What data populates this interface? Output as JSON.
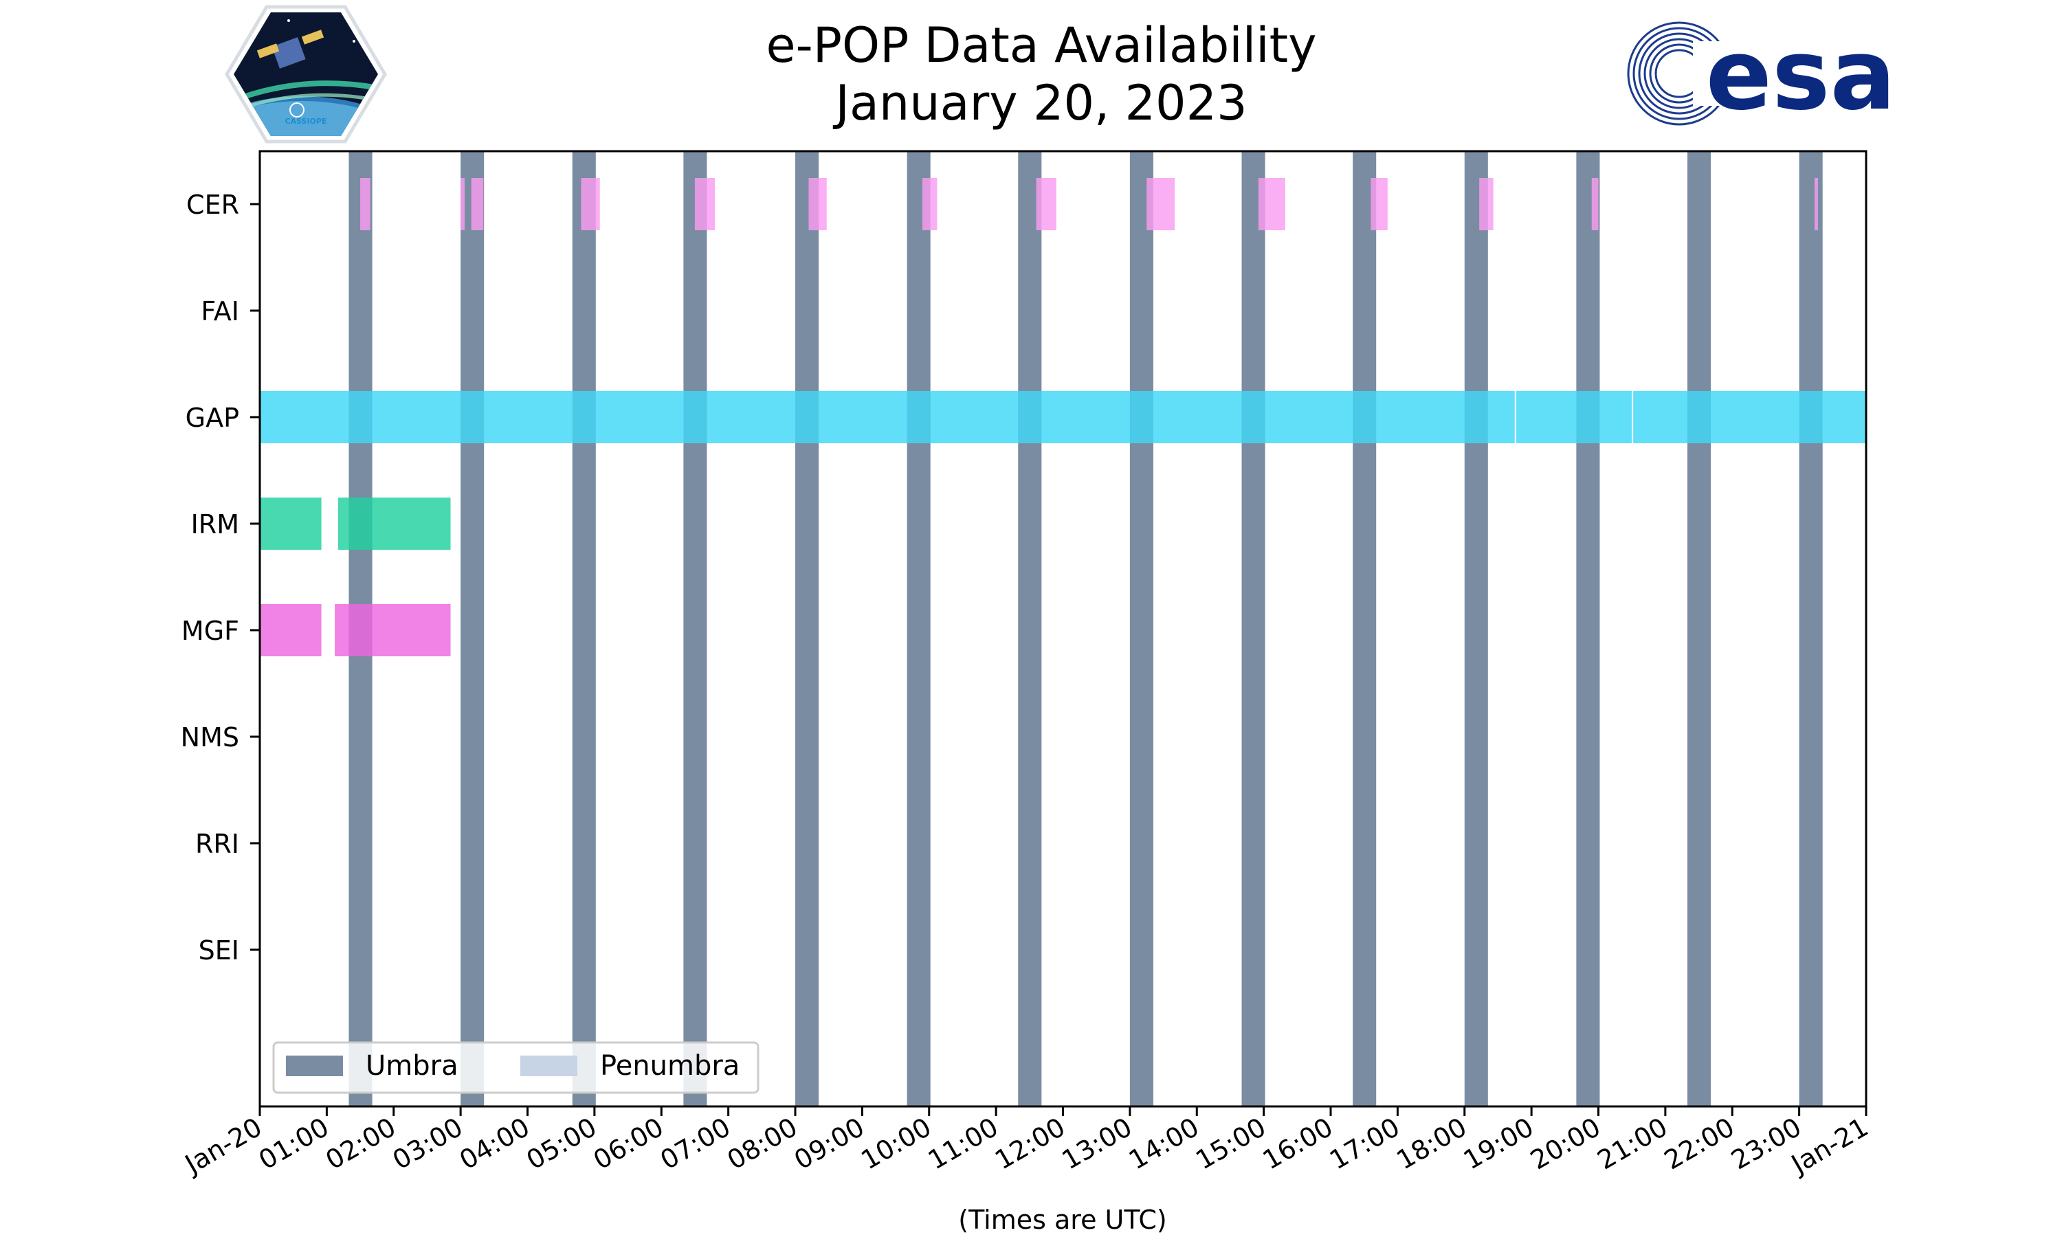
{
  "chart_data": {
    "type": "timeline",
    "title_line1": "e-POP Data Availability",
    "title_line2": "January 20, 2023",
    "xlabel": "(Times are UTC)",
    "x_range_hours": [
      0,
      24
    ],
    "x_tick_labels": [
      "Jan-20",
      "01:00",
      "02:00",
      "03:00",
      "04:00",
      "05:00",
      "06:00",
      "07:00",
      "08:00",
      "09:00",
      "10:00",
      "11:00",
      "12:00",
      "13:00",
      "14:00",
      "15:00",
      "16:00",
      "17:00",
      "18:00",
      "19:00",
      "20:00",
      "21:00",
      "22:00",
      "23:00",
      "Jan-21"
    ],
    "instruments": [
      "CER",
      "FAI",
      "GAP",
      "IRM",
      "MGF",
      "NMS",
      "RRI",
      "SEI"
    ],
    "colors": {
      "umbra": "#7a8ca1",
      "penumbra": "#c6d4e6",
      "CER": "#f99cf0",
      "GAP": "#40d8f7",
      "IRM": "#20d1a0",
      "MGF": "#ee66e0"
    },
    "umbra_intervals_hours": [
      [
        1.33,
        1.68
      ],
      [
        3.0,
        3.35
      ],
      [
        4.67,
        5.02
      ],
      [
        6.33,
        6.68
      ],
      [
        8.0,
        8.35
      ],
      [
        9.67,
        10.02
      ],
      [
        11.33,
        11.68
      ],
      [
        13.0,
        13.35
      ],
      [
        14.67,
        15.02
      ],
      [
        16.33,
        16.68
      ],
      [
        18.0,
        18.35
      ],
      [
        19.67,
        20.02
      ],
      [
        21.33,
        21.68
      ],
      [
        23.0,
        23.35
      ]
    ],
    "availability_hours": {
      "CER": [
        [
          1.5,
          1.65
        ],
        [
          3.0,
          3.06
        ],
        [
          3.16,
          3.34
        ],
        [
          4.8,
          5.08
        ],
        [
          6.5,
          6.8
        ],
        [
          8.2,
          8.47
        ],
        [
          9.9,
          10.12
        ],
        [
          11.6,
          11.9
        ],
        [
          13.25,
          13.67
        ],
        [
          14.92,
          15.32
        ],
        [
          16.6,
          16.85
        ],
        [
          18.22,
          18.43
        ],
        [
          19.9,
          20.0
        ],
        [
          23.23,
          23.28
        ]
      ],
      "FAI": [],
      "GAP": [
        [
          0.0,
          18.75
        ],
        [
          18.77,
          20.5
        ],
        [
          20.52,
          24.0
        ]
      ],
      "IRM": [
        [
          0.0,
          0.92
        ],
        [
          1.17,
          2.85
        ]
      ],
      "MGF": [
        [
          0.0,
          0.92
        ],
        [
          1.12,
          2.85
        ]
      ],
      "NMS": [],
      "RRI": [],
      "SEI": []
    },
    "legend": [
      {
        "label": "Umbra",
        "key": "umbra"
      },
      {
        "label": "Penumbra",
        "key": "penumbra"
      }
    ],
    "legend_location": "lower-left",
    "logos": {
      "left_text": "CASSIOPE",
      "right_text": "esa"
    }
  }
}
